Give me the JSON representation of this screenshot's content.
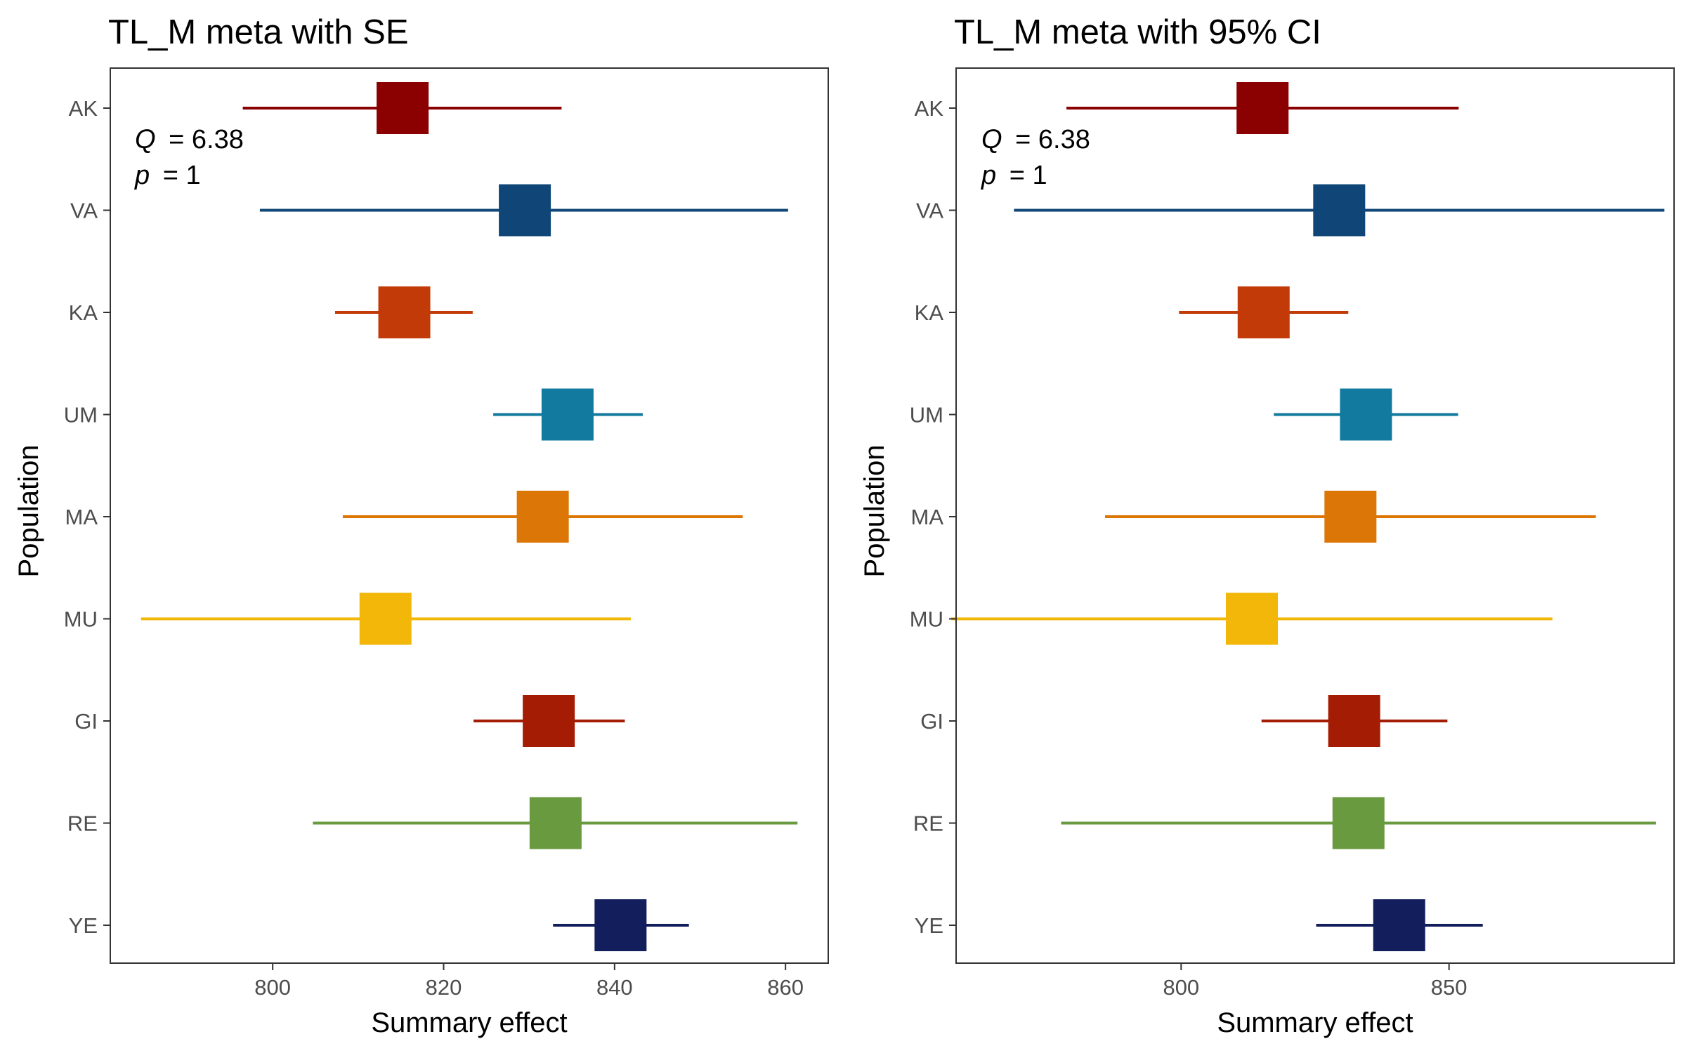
{
  "chart_data": [
    {
      "type": "forest",
      "title": "TL_M meta with SE",
      "xlabel": "Summary effect",
      "ylabel": "Population",
      "xlim": [
        781,
        865
      ],
      "x_ticks": [
        800,
        820,
        840,
        860
      ],
      "x_tick_labels": [
        "800",
        "820",
        "840",
        "860"
      ],
      "grid": false,
      "stats": {
        "q_symbol": "Q",
        "q_value": "= 6.38",
        "p_symbol": "p",
        "p_value": "= 1"
      },
      "series": [
        {
          "population": "AK",
          "estimate": 815.2,
          "low": 796.5,
          "high": 833.8,
          "color": "#8B0000"
        },
        {
          "population": "VA",
          "estimate": 829.5,
          "low": 798.5,
          "high": 860.3,
          "color": "#0F4677"
        },
        {
          "population": "KA",
          "estimate": 815.4,
          "low": 807.3,
          "high": 823.4,
          "color": "#C23A07"
        },
        {
          "population": "UM",
          "estimate": 834.5,
          "low": 825.8,
          "high": 843.3,
          "color": "#117A9E"
        },
        {
          "population": "MA",
          "estimate": 831.6,
          "low": 808.2,
          "high": 855.0,
          "color": "#DC7707"
        },
        {
          "population": "MU",
          "estimate": 813.2,
          "low": 784.6,
          "high": 841.9,
          "color": "#F2B709"
        },
        {
          "population": "GI",
          "estimate": 832.3,
          "low": 823.5,
          "high": 841.2,
          "color": "#A41C04"
        },
        {
          "population": "RE",
          "estimate": 833.1,
          "low": 804.7,
          "high": 861.4,
          "color": "#6A9A40"
        },
        {
          "population": "YE",
          "estimate": 840.7,
          "low": 832.8,
          "high": 848.7,
          "color": "#131E5C"
        }
      ]
    },
    {
      "type": "forest",
      "title": "TL_M meta with 95% CI",
      "xlabel": "Summary effect",
      "ylabel": "Population",
      "xlim": [
        758,
        892
      ],
      "x_ticks": [
        800,
        850
      ],
      "x_tick_labels": [
        "800",
        "850"
      ],
      "grid": false,
      "stats": {
        "q_symbol": "Q",
        "q_value": "= 6.38",
        "p_symbol": "p",
        "p_value": "= 1"
      },
      "series": [
        {
          "population": "AK",
          "estimate": 815.2,
          "low": 778.6,
          "high": 851.8,
          "color": "#8B0000"
        },
        {
          "population": "VA",
          "estimate": 829.5,
          "low": 768.8,
          "high": 890.2,
          "color": "#0F4677"
        },
        {
          "population": "KA",
          "estimate": 815.4,
          "low": 799.6,
          "high": 831.2,
          "color": "#C23A07"
        },
        {
          "population": "UM",
          "estimate": 834.5,
          "low": 817.3,
          "high": 851.7,
          "color": "#117A9E"
        },
        {
          "population": "MA",
          "estimate": 831.6,
          "low": 785.8,
          "high": 877.4,
          "color": "#DC7707"
        },
        {
          "population": "MU",
          "estimate": 813.2,
          "low": 757.1,
          "high": 869.3,
          "color": "#F2B709"
        },
        {
          "population": "GI",
          "estimate": 832.3,
          "low": 815.0,
          "high": 849.7,
          "color": "#A41C04"
        },
        {
          "population": "RE",
          "estimate": 833.1,
          "low": 777.6,
          "high": 888.6,
          "color": "#6A9A40"
        },
        {
          "population": "YE",
          "estimate": 840.7,
          "low": 825.2,
          "high": 856.3,
          "color": "#131E5C"
        }
      ]
    }
  ]
}
